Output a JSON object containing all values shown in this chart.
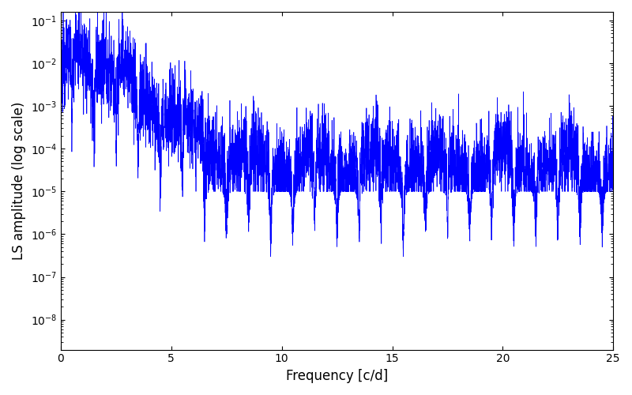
{
  "xlabel": "Frequency [c/d]",
  "ylabel": "LS amplitude (log scale)",
  "xlim": [
    0,
    25
  ],
  "ylim_log": [
    -8.7,
    -0.8
  ],
  "line_color": "blue",
  "line_width": 0.5,
  "background_color": "#ffffff",
  "seed": 12345,
  "n_points": 5000,
  "freq_max": 25.0,
  "figsize": [
    8.0,
    5.0
  ],
  "dpi": 100,
  "yticks": [
    1e-08,
    1e-07,
    1e-06,
    1e-05,
    0.0001,
    0.001,
    0.01,
    0.1
  ],
  "xticks": [
    0,
    5,
    10,
    15,
    20,
    25
  ],
  "peak_freq": 0.7,
  "peak_amp": 0.07,
  "decay_rate": 0.9,
  "noise_floor_log": -4.0,
  "noise_scatter_log": 1.2,
  "deep_dip_freq1": 9.5,
  "deep_dip_freq2": 15.5,
  "deep_dip_depth": 3e-09,
  "comb_period": 0.35,
  "comb_depth": 3.0
}
